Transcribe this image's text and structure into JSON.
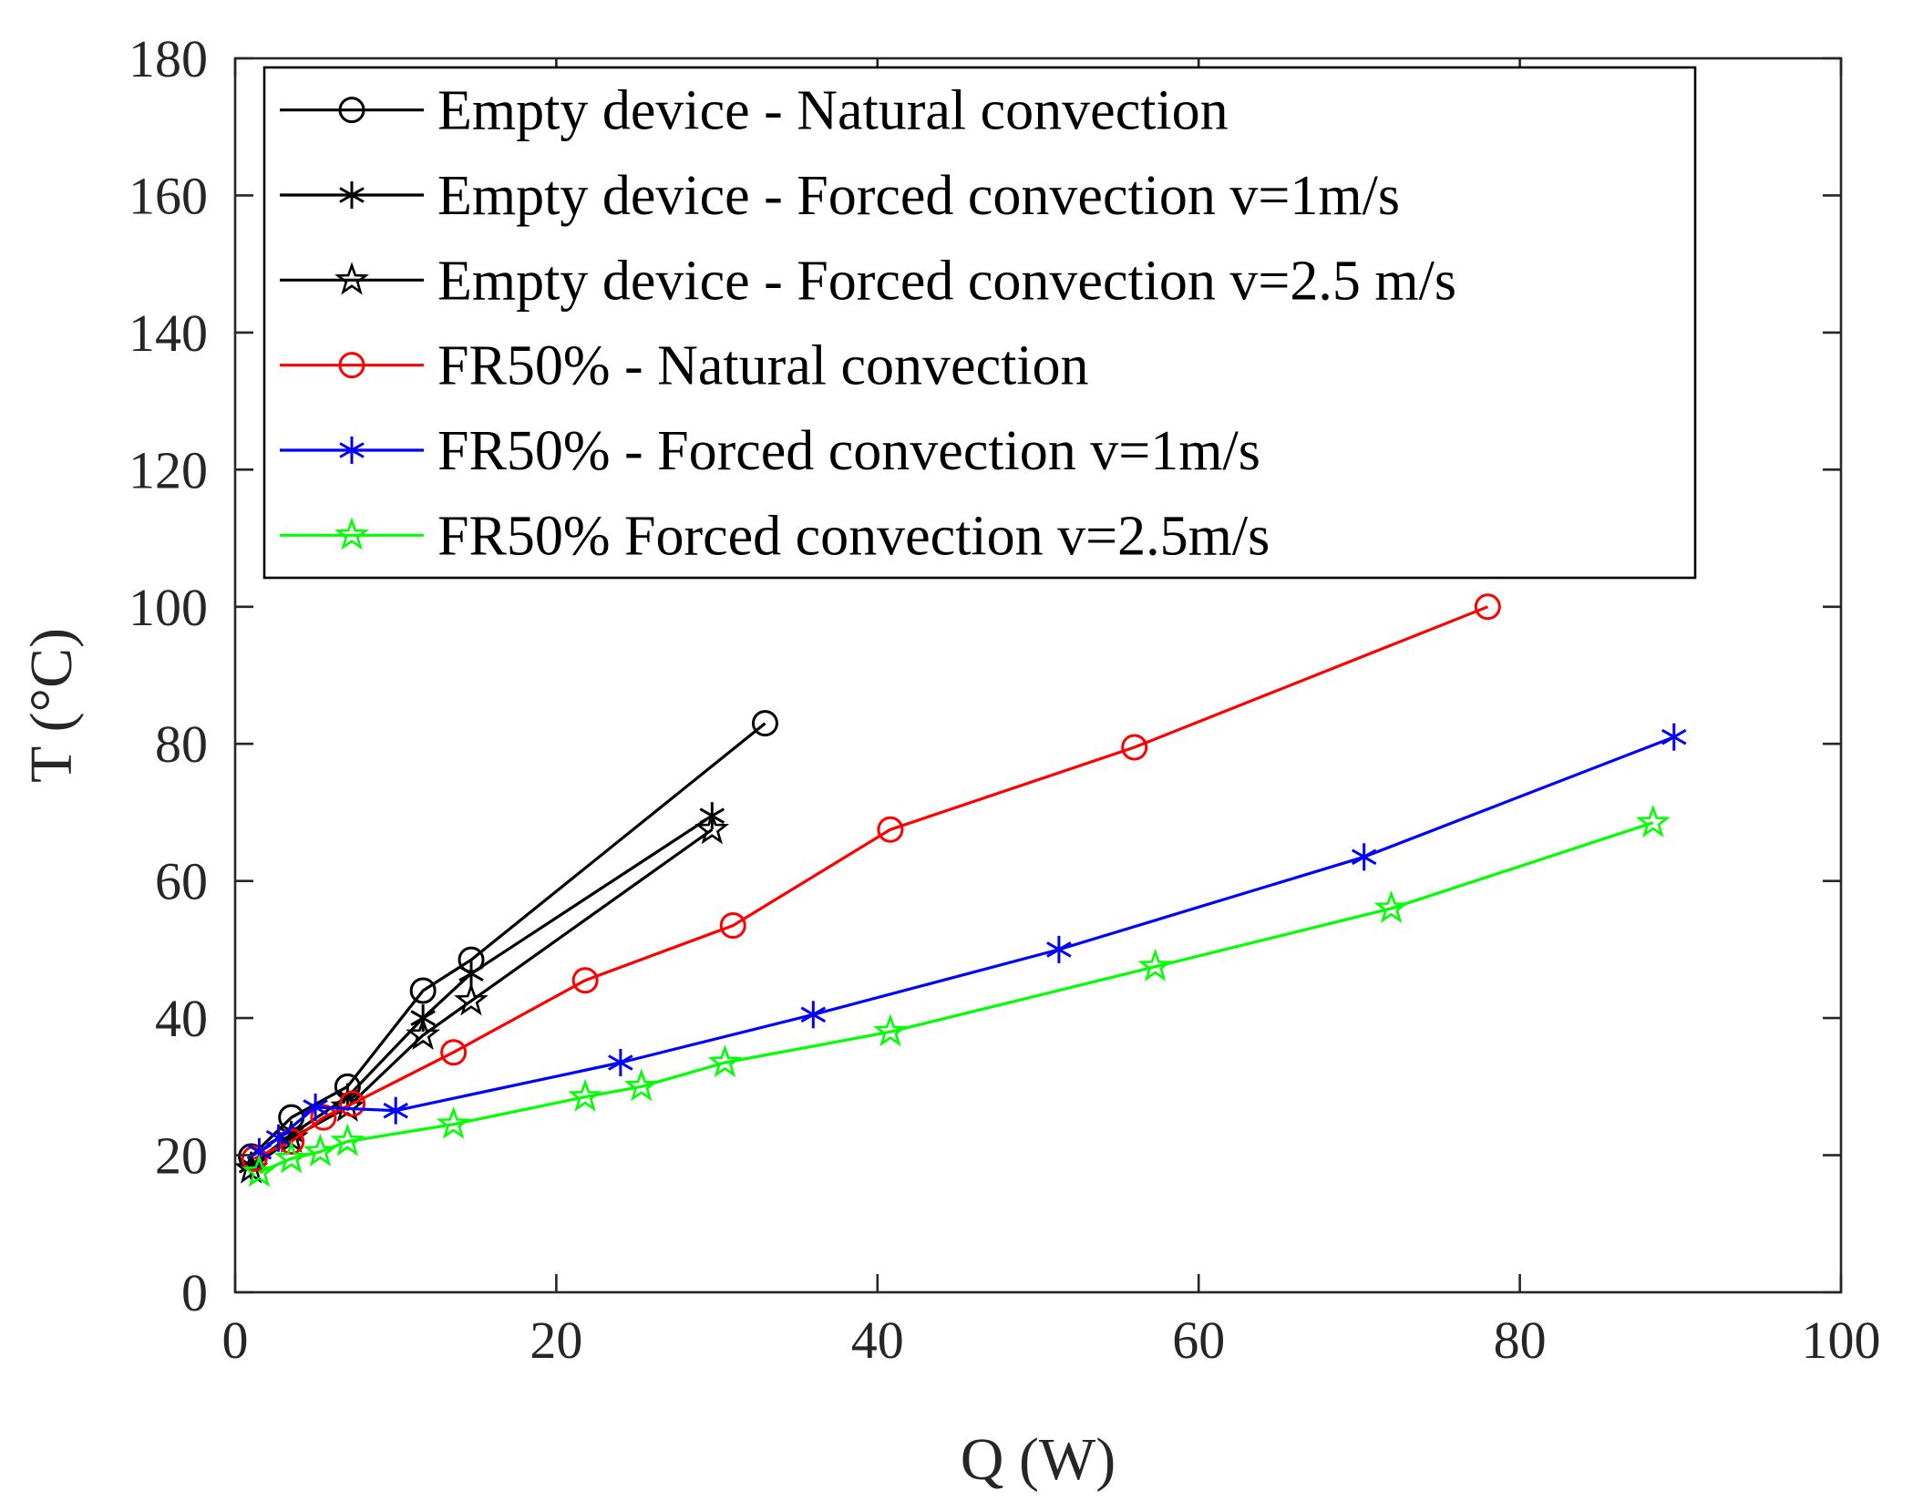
{
  "chart_data": {
    "type": "line",
    "xlabel": "Q (W)",
    "ylabel": "T (°C)",
    "xlim": [
      0,
      100
    ],
    "ylim": [
      0,
      180
    ],
    "xticks": [
      0,
      20,
      40,
      60,
      80,
      100
    ],
    "yticks": [
      0,
      20,
      40,
      60,
      80,
      100,
      120,
      140,
      160,
      180
    ],
    "grid": false,
    "legend_position": "top-left",
    "series": [
      {
        "name": "Empty device - Natural convection",
        "color": "#000000",
        "marker": "circle",
        "x": [
          1.0,
          3.5,
          7.0,
          11.7,
          14.7,
          33.0
        ],
        "y": [
          19.8,
          25.5,
          30.0,
          44.0,
          48.5,
          83.0
        ]
      },
      {
        "name": "Empty device - Forced convection v=1m/s",
        "color": "#000000",
        "marker": "asterisk",
        "x": [
          1.0,
          3.5,
          7.0,
          11.7,
          14.7,
          29.7
        ],
        "y": [
          18.5,
          23.0,
          28.5,
          40.0,
          46.5,
          69.5
        ]
      },
      {
        "name": "Empty device - Forced convection v=2.5 m/s",
        "color": "#000000",
        "marker": "star",
        "x": [
          1.0,
          3.5,
          7.0,
          11.7,
          14.7,
          29.7
        ],
        "y": [
          18.0,
          22.5,
          27.0,
          37.5,
          42.5,
          67.5
        ]
      },
      {
        "name": "FR50% - Natural convection",
        "color": "#ff0000",
        "marker": "circle",
        "x": [
          1.2,
          3.5,
          5.5,
          7.3,
          13.6,
          21.8,
          31.0,
          40.8,
          56.0,
          78.0
        ],
        "y": [
          19.5,
          22.0,
          25.5,
          27.5,
          35.0,
          45.5,
          53.5,
          67.5,
          79.5,
          100.0
        ]
      },
      {
        "name": "FR50% - Forced convection v=1m/s",
        "color": "#0000ff",
        "marker": "asterisk",
        "x": [
          1.5,
          2.7,
          5.0,
          10.0,
          24.0,
          36.0,
          51.3,
          70.3,
          89.6
        ],
        "y": [
          20.5,
          22.5,
          27.0,
          26.5,
          33.5,
          40.5,
          50.0,
          63.5,
          81.0
        ]
      },
      {
        "name": "FR50% Forced convection v=2.5m/s",
        "color": "#00ff00",
        "marker": "star",
        "x": [
          1.5,
          3.5,
          5.3,
          7.0,
          13.6,
          21.8,
          25.3,
          30.5,
          40.8,
          57.3,
          72.0,
          88.3
        ],
        "y": [
          17.5,
          19.5,
          20.5,
          22.0,
          24.5,
          28.5,
          30.0,
          33.5,
          38.0,
          47.5,
          56.0,
          68.5
        ]
      }
    ]
  }
}
